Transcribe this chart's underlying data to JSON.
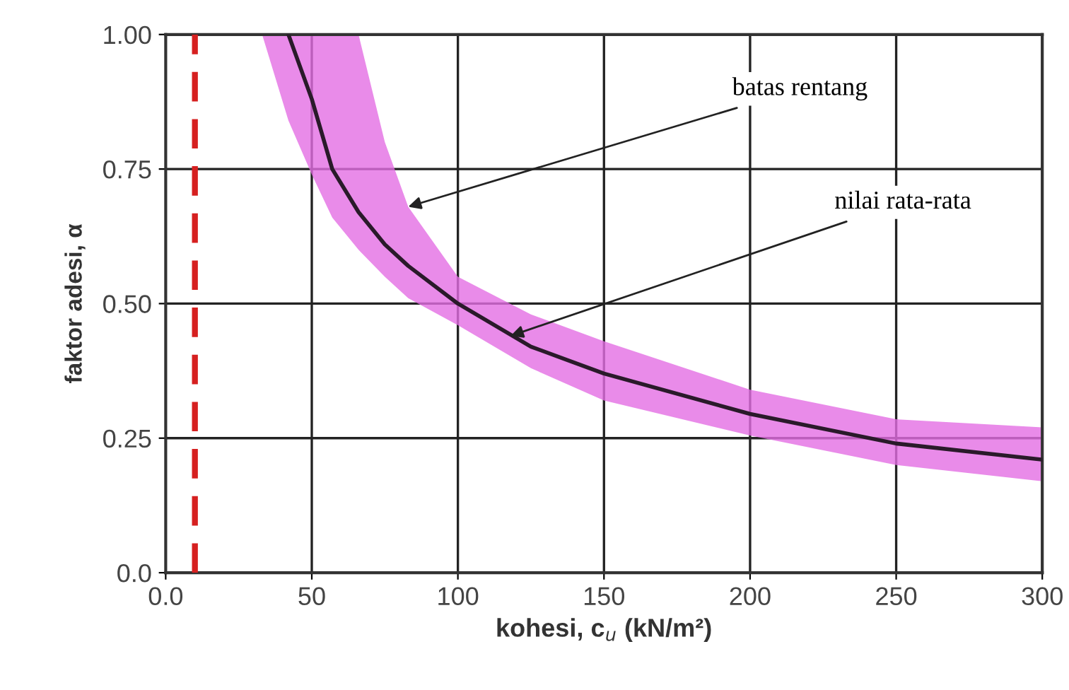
{
  "chart_data": {
    "type": "line",
    "xlabel": "kohesi, c$_{u}$ (kN/m²)",
    "ylabel": "faktor adesi, α",
    "x": [
      33,
      42,
      50,
      57,
      66,
      75,
      83,
      100,
      125,
      150,
      200,
      250,
      300
    ],
    "series": [
      {
        "color": "#2a1a2a",
        "values": [
          null,
          1.0,
          0.88,
          0.75,
          0.67,
          0.61,
          0.57,
          0.5,
          0.42,
          0.37,
          0.295,
          0.24,
          0.21
        ],
        "lower": [
          1.0,
          0.84,
          0.74,
          0.66,
          0.6,
          0.55,
          0.51,
          0.46,
          0.38,
          0.32,
          0.255,
          0.2,
          0.17
        ],
        "upper": [
          1.0,
          1.0,
          1.0,
          1.0,
          1.0,
          0.8,
          0.68,
          0.55,
          0.48,
          0.43,
          0.34,
          0.285,
          0.27
        ]
      }
    ],
    "xlim": [
      0,
      300
    ],
    "xticks": [
      {
        "value": 0,
        "label": "0.0"
      },
      50,
      100,
      150,
      200,
      250,
      300
    ],
    "ylim": [
      0,
      1
    ],
    "yticks": [
      {
        "value": 0,
        "label": "0.0"
      },
      0.25,
      {
        "value": 0.5,
        "label": "0.50"
      },
      0.75,
      {
        "value": 1.0,
        "label": "1.00"
      }
    ],
    "ref_lines": [
      {
        "axis": "x",
        "value": 10,
        "color": "#d62020",
        "line_style": "dashed"
      }
    ],
    "annotations": [
      {
        "text": "batas rentang",
        "x": 83,
        "y": 0.68
      },
      {
        "text": "nilai rata-rata",
        "x": 118,
        "y": 0.44
      }
    ],
    "grid": true,
    "marker": "none",
    "line_style": "solid"
  }
}
